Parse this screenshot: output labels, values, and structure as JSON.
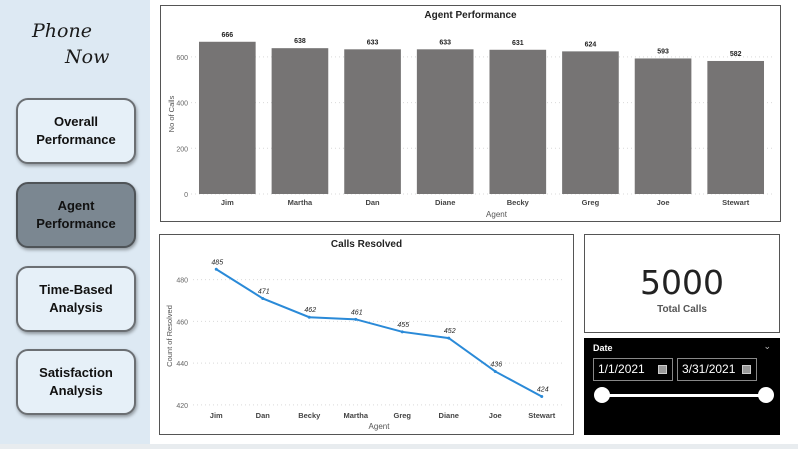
{
  "logo": {
    "line1": "Phone",
    "line2": "Now"
  },
  "nav": [
    {
      "label": "Overall Performance",
      "active": false
    },
    {
      "label": "Agent Performance",
      "active": true
    },
    {
      "label": "Time-Based Analysis",
      "active": false
    },
    {
      "label": "Satisfaction Analysis",
      "active": false
    }
  ],
  "colors": {
    "bar": "#767474",
    "line": "#2a8ad8",
    "active_nav": "#7b8791",
    "sidebar": "#dde9f3"
  },
  "chart_data": [
    {
      "type": "bar",
      "title": "Agent Performance",
      "xlabel": "Agent",
      "ylabel": "No of Calls",
      "categories": [
        "Jim",
        "Martha",
        "Dan",
        "Diane",
        "Becky",
        "Greg",
        "Joe",
        "Stewart"
      ],
      "values": [
        666,
        638,
        633,
        633,
        631,
        624,
        593,
        582
      ],
      "yticks": [
        0,
        200,
        400,
        600
      ],
      "ylim": [
        0,
        700
      ],
      "grid": true
    },
    {
      "type": "line",
      "title": "Calls Resolved",
      "xlabel": "Agent",
      "ylabel": "Count of Resolved",
      "categories": [
        "Jim",
        "Dan",
        "Becky",
        "Martha",
        "Greg",
        "Diane",
        "Joe",
        "Stewart"
      ],
      "values": [
        485,
        471,
        462,
        461,
        455,
        452,
        436,
        424
      ],
      "yticks": [
        420,
        440,
        460,
        480
      ],
      "ylim": [
        418,
        488
      ],
      "grid": true
    }
  ],
  "kpi": {
    "value": "5000",
    "label": "Total Calls"
  },
  "date_slicer": {
    "title": "Date",
    "start": "1/1/2021",
    "end": "3/31/2021",
    "chevron": "⌄",
    "start_pos": 0,
    "end_pos": 1
  }
}
